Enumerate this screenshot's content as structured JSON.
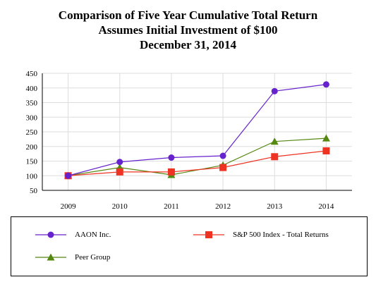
{
  "chart_data": {
    "type": "line",
    "title": "Comparison of Five Year Cumulative Total Return",
    "subtitle_1": "Assumes Initial Investment of $100",
    "subtitle_2": "December 31, 2014",
    "categories": [
      "2009",
      "2010",
      "2011",
      "2012",
      "2013",
      "2014"
    ],
    "ylim": [
      50,
      450
    ],
    "yticks": [
      "450",
      "400",
      "350",
      "300",
      "250",
      "200",
      "150",
      "100",
      "50"
    ],
    "ytick_values": [
      450,
      400,
      350,
      300,
      250,
      200,
      150,
      100,
      50
    ],
    "grid": true,
    "legend_placement": "bottom",
    "series": [
      {
        "name": "AAON Inc.",
        "color": "#6622cc",
        "marker": "circle",
        "values": [
          100,
          147,
          162,
          168,
          389,
          412
        ]
      },
      {
        "name": "S&P 500 Index - Total Returns",
        "color": "#ee3322",
        "marker": "square",
        "values": [
          100,
          113,
          113,
          128,
          165,
          185
        ]
      },
      {
        "name": "Peer Group",
        "color": "#558811",
        "marker": "triangle",
        "values": [
          100,
          128,
          103,
          136,
          217,
          228
        ]
      }
    ]
  }
}
